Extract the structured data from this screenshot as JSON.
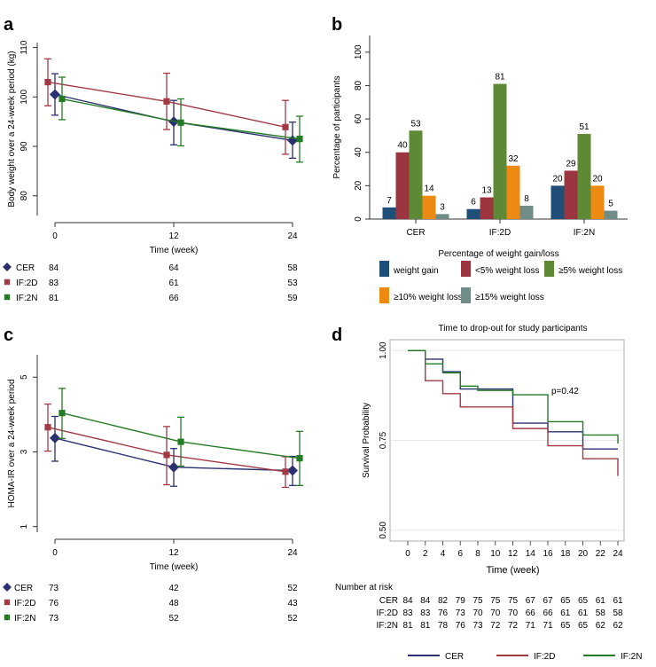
{
  "colors": {
    "cer": "#2b3170",
    "d2": "#a23a46",
    "n2": "#257b25",
    "bar_gain": "#1f4e79",
    "bar_lt5": "#9b3540",
    "bar_ge5": "#5e8a35",
    "bar_ge10": "#ec8a12",
    "bar_ge15": "#6f8c87"
  },
  "chart_data": [
    {
      "panel": "a",
      "type": "line",
      "ylabel": "Body weight over a 24-week period (kg)",
      "xlabel": "Time (week)",
      "ylim": [
        76,
        111
      ],
      "yticks": [
        "80",
        "90",
        "100",
        "110"
      ],
      "yticks_num": [
        80,
        90,
        100,
        110
      ],
      "x": [
        0,
        12,
        24
      ],
      "xtick_labels": [
        "0",
        "12",
        "24"
      ],
      "series": [
        {
          "name": "CER",
          "color": "#2b3170",
          "marker": "diamond",
          "values": [
            100.5,
            95.0,
            91.2
          ],
          "ci_low": [
            96.3,
            90.3,
            87.6
          ],
          "ci_high": [
            104.7,
            99.3,
            94.9
          ]
        },
        {
          "name": "IF:2D",
          "color": "#a23a46",
          "marker": "square",
          "values": [
            103.0,
            99.1,
            93.9
          ],
          "ci_low": [
            98.2,
            93.4,
            88.4
          ],
          "ci_high": [
            107.7,
            104.8,
            99.3
          ]
        },
        {
          "name": "IF:2N",
          "color": "#257b25",
          "marker": "square",
          "values": [
            99.6,
            94.8,
            91.5
          ],
          "ci_low": [
            95.4,
            90.1,
            86.8
          ],
          "ci_high": [
            104.0,
            99.6,
            96.1
          ]
        }
      ],
      "risk_rows": [
        {
          "label": "CER",
          "color": "#2b3170",
          "marker": "diamond",
          "values": [
            "84",
            "64",
            "58"
          ]
        },
        {
          "label": "IF:2D",
          "color": "#a23a46",
          "marker": "square",
          "values": [
            "83",
            "61",
            "53"
          ]
        },
        {
          "label": "IF:2N",
          "color": "#257b25",
          "marker": "square",
          "values": [
            "81",
            "66",
            "59"
          ]
        }
      ]
    },
    {
      "panel": "b",
      "type": "bar",
      "ylabel": "Percentage of participants",
      "xlabel": "Percentage of weight gain/loss",
      "ylim": [
        0,
        110
      ],
      "yticks": [
        "0",
        "20",
        "40",
        "60",
        "80",
        "100"
      ],
      "yticks_num": [
        0,
        20,
        40,
        60,
        80,
        100
      ],
      "categories": [
        "CER",
        "IF:2D",
        "IF:2N"
      ],
      "series": [
        {
          "name": "weight gain",
          "color": "#1f4e79",
          "values": [
            7,
            6,
            20
          ]
        },
        {
          "name": "<5% weight loss",
          "color": "#9b3540",
          "values": [
            40,
            13,
            29
          ]
        },
        {
          "name": "≥5% weight loss",
          "color": "#5e8a35",
          "values": [
            53,
            81,
            51
          ]
        },
        {
          "name": "≥10% weight loss",
          "color": "#ec8a12",
          "values": [
            14,
            32,
            20
          ]
        },
        {
          "name": "≥15% weight loss",
          "color": "#6f8c87",
          "values": [
            3,
            8,
            5
          ]
        }
      ]
    },
    {
      "panel": "c",
      "type": "line",
      "ylabel": "HOMA-IR over a 24-week period",
      "xlabel": "Time (week)",
      "ylim": [
        0.85,
        5.6
      ],
      "yticks": [
        "1",
        "3",
        "5"
      ],
      "yticks_num": [
        1,
        3,
        5
      ],
      "x": [
        0,
        12,
        24
      ],
      "xtick_labels": [
        "0",
        "12",
        "24"
      ],
      "series": [
        {
          "name": "CER",
          "color": "#2b3170",
          "marker": "diamond",
          "values": [
            3.37,
            2.59,
            2.5
          ],
          "ci_low": [
            2.75,
            2.08,
            2.1
          ],
          "ci_high": [
            3.95,
            3.09,
            2.88
          ]
        },
        {
          "name": "IF:2D",
          "color": "#a23a46",
          "marker": "square",
          "values": [
            3.66,
            2.92,
            2.47
          ],
          "ci_low": [
            3.02,
            2.12,
            2.05
          ],
          "ci_high": [
            4.28,
            3.68,
            2.87
          ]
        },
        {
          "name": "IF:2N",
          "color": "#257b25",
          "marker": "square",
          "values": [
            4.04,
            3.27,
            2.83
          ],
          "ci_low": [
            3.36,
            2.62,
            2.1
          ],
          "ci_high": [
            4.7,
            3.93,
            3.55
          ]
        }
      ],
      "risk_rows": [
        {
          "label": "CER",
          "color": "#2b3170",
          "marker": "diamond",
          "values": [
            "73",
            "42",
            "52"
          ]
        },
        {
          "label": "IF:2D",
          "color": "#a23a46",
          "marker": "square",
          "values": [
            "76",
            "48",
            "43"
          ]
        },
        {
          "label": "IF:2N",
          "color": "#257b25",
          "marker": "square",
          "values": [
            "73",
            "52",
            "52"
          ]
        }
      ]
    },
    {
      "panel": "d",
      "type": "line",
      "subtype": "kaplan-meier step",
      "title": "Time to drop-out for study participants",
      "ylabel": "Survival Probability",
      "xlabel": "Time (week)",
      "annotation": "p=0.42",
      "ylim": [
        0.47,
        1.03
      ],
      "yticks": [
        "0.50",
        "0.75",
        "1.00"
      ],
      "yticks_num": [
        0.5,
        0.75,
        1.0
      ],
      "xticks": [
        "0",
        "2",
        "4",
        "6",
        "8",
        "10",
        "12",
        "14",
        "16",
        "18",
        "20",
        "22",
        "24"
      ],
      "series": [
        {
          "name": "CER",
          "color": "#2b3170",
          "times": [
            0,
            2,
            4,
            6,
            8,
            12,
            16,
            20,
            24
          ],
          "values": [
            1.0,
            0.976,
            0.941,
            0.893,
            0.893,
            0.798,
            0.774,
            0.726,
            0.726
          ]
        },
        {
          "name": "IF:2D",
          "color": "#a23a46",
          "times": [
            0,
            2,
            4,
            6,
            12,
            16,
            20,
            24
          ],
          "values": [
            1.0,
            0.916,
            0.88,
            0.843,
            0.783,
            0.735,
            0.699,
            0.651
          ]
        },
        {
          "name": "IF:2N",
          "color": "#257b25",
          "times": [
            0,
            2,
            4,
            6,
            8,
            12,
            16,
            20,
            24
          ],
          "values": [
            1.0,
            0.963,
            0.938,
            0.901,
            0.889,
            0.877,
            0.802,
            0.765,
            0.741
          ]
        }
      ],
      "risk_table": {
        "title": "Number at risk",
        "rows": [
          {
            "label": "CER",
            "values": [
              "84",
              "84",
              "82",
              "79",
              "75",
              "75",
              "75",
              "67",
              "67",
              "65",
              "65",
              "61",
              "61"
            ]
          },
          {
            "label": "IF:2D",
            "values": [
              "83",
              "83",
              "76",
              "73",
              "70",
              "70",
              "70",
              "66",
              "66",
              "61",
              "61",
              "58",
              "58"
            ]
          },
          {
            "label": "IF:2N",
            "values": [
              "81",
              "81",
              "78",
              "76",
              "73",
              "72",
              "72",
              "71",
              "71",
              "65",
              "65",
              "62",
              "62"
            ]
          }
        ]
      },
      "legend": [
        {
          "name": "CER",
          "color": "#2b3170"
        },
        {
          "name": "IF:2D",
          "color": "#a23a46"
        },
        {
          "name": "IF:2N",
          "color": "#257b25"
        }
      ]
    }
  ],
  "panel_labels": [
    "a",
    "b",
    "c",
    "d"
  ]
}
